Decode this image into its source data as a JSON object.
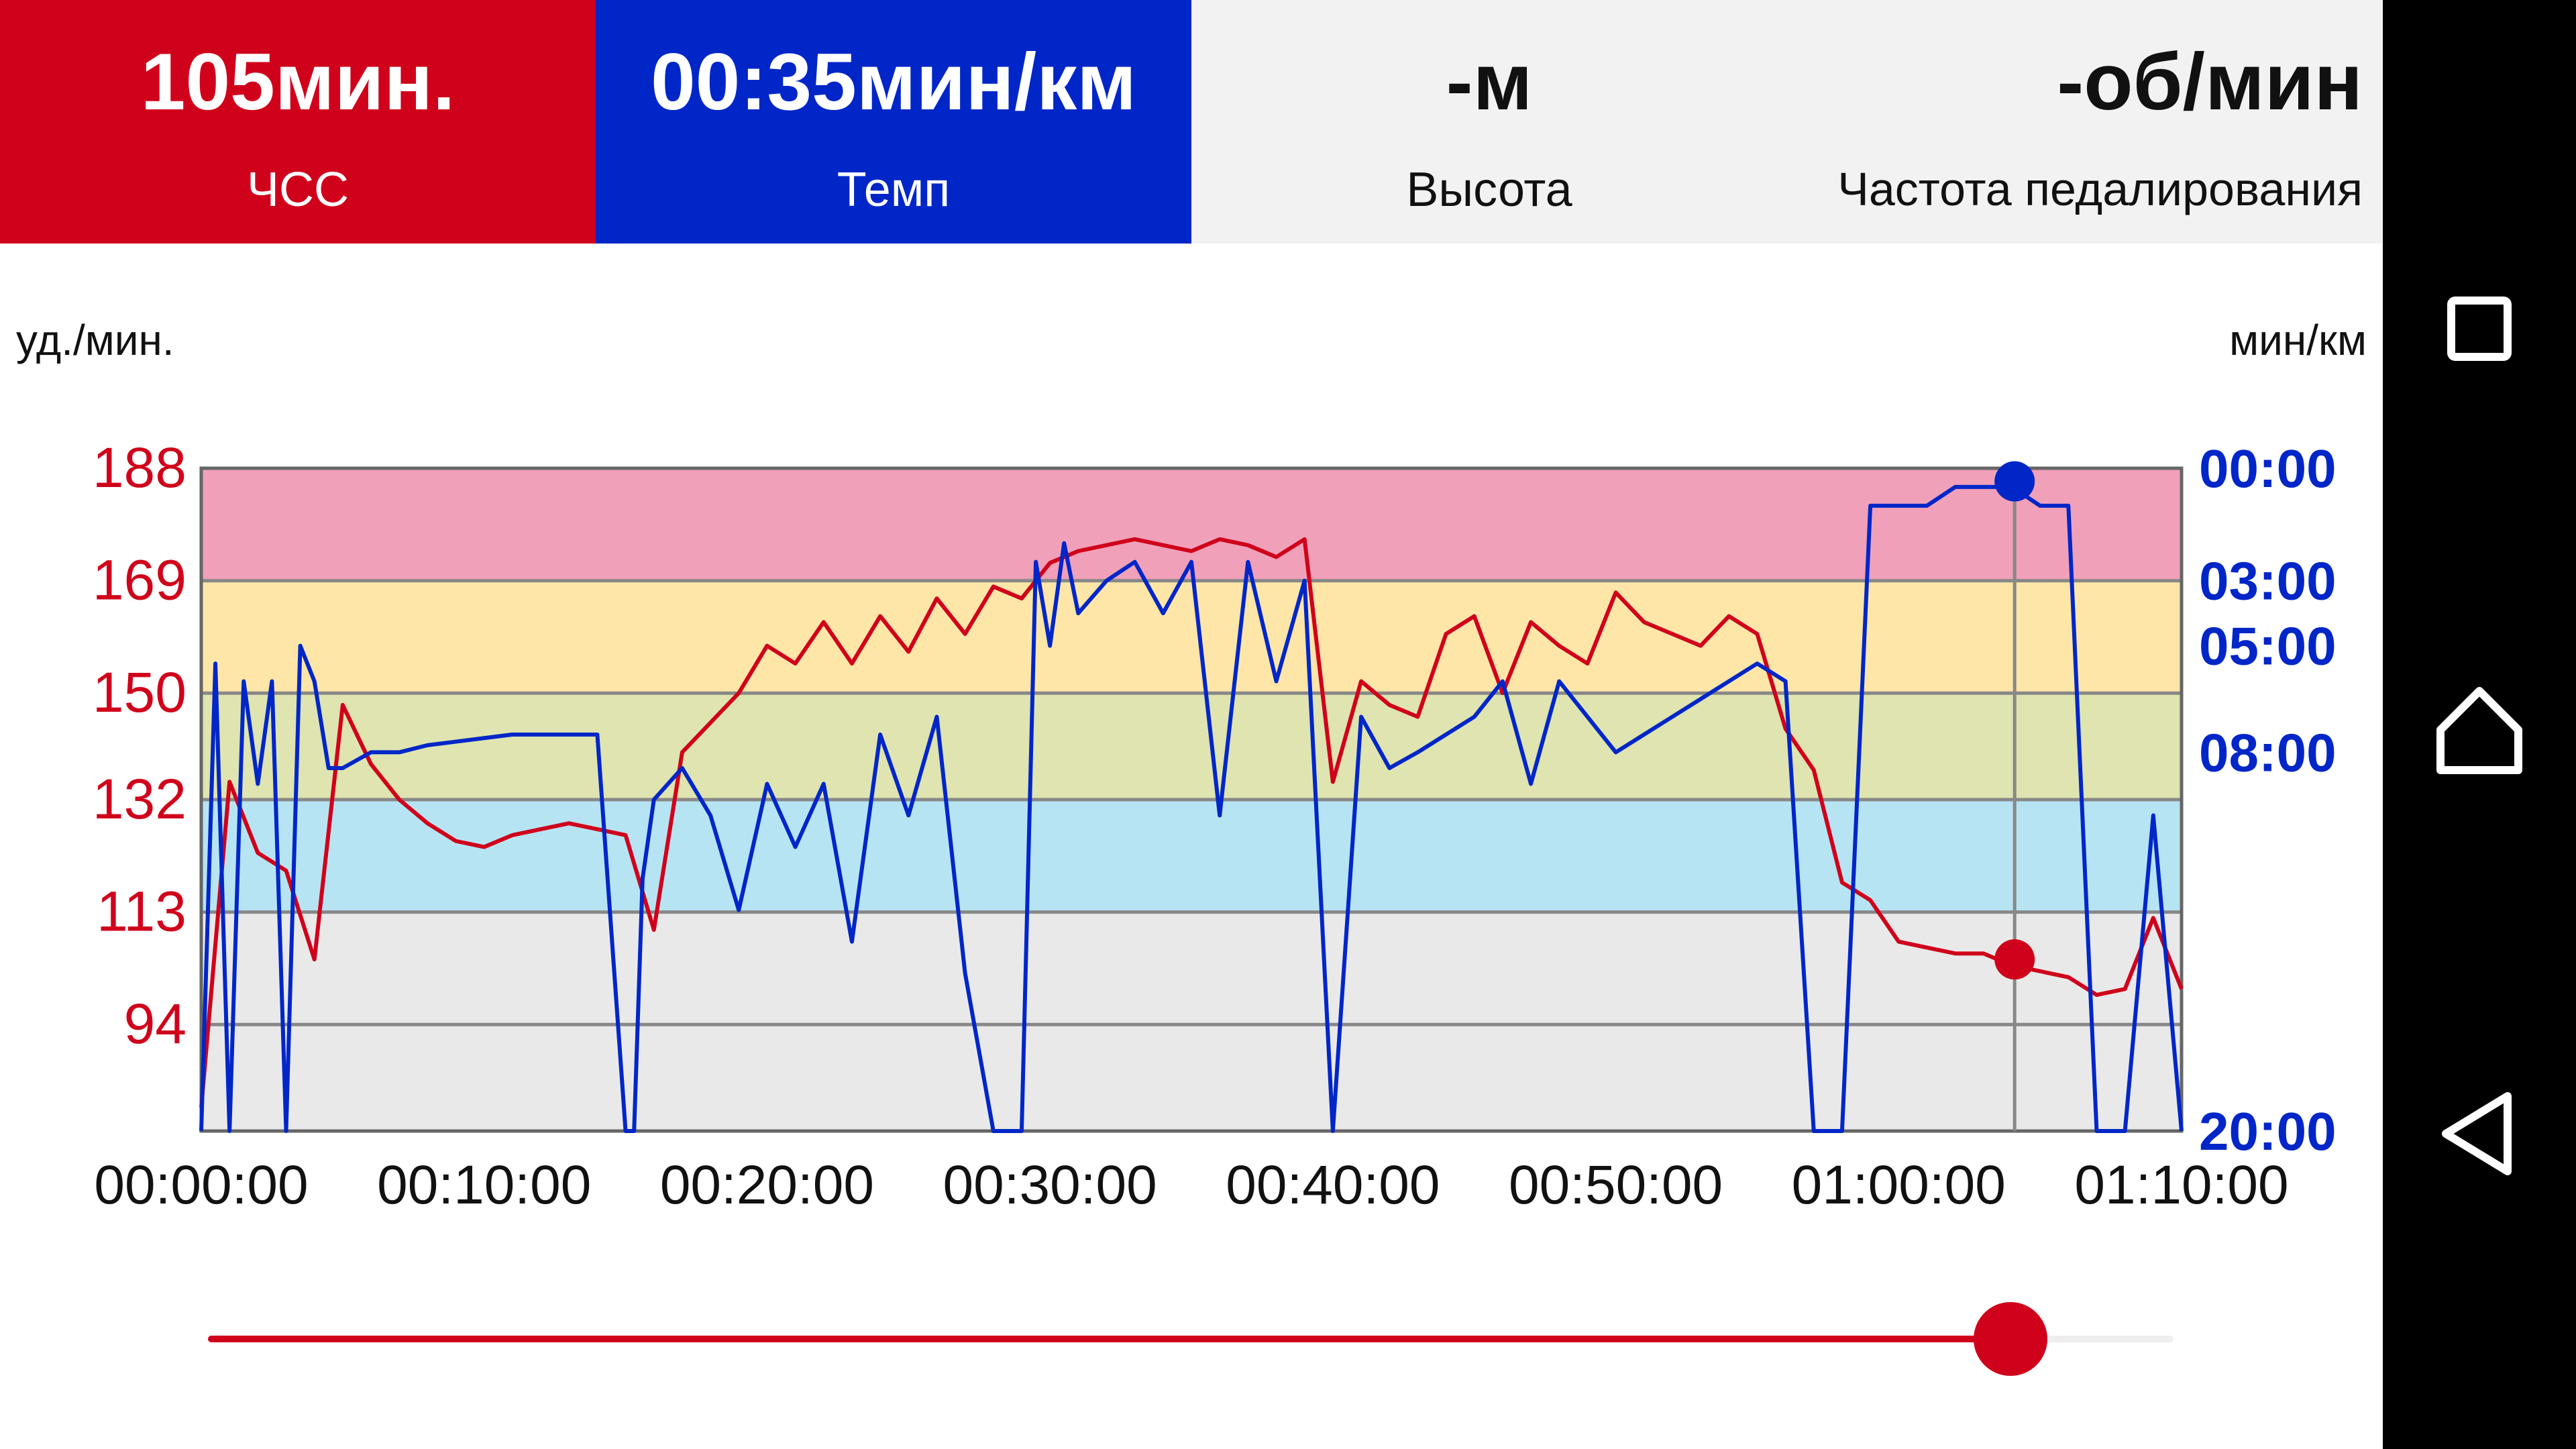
{
  "header": {
    "tiles": [
      {
        "value": "105мин.",
        "label": "ЧСС",
        "color": "#d0021b"
      },
      {
        "value": "00:35мин/км",
        "label": "Темп",
        "color": "#0026c8"
      },
      {
        "value": "-м",
        "label": "Высота",
        "color": "#f2f2f2"
      },
      {
        "value": "-об/мин",
        "label": "Частота педалирования",
        "color": "#f2f2f2"
      }
    ]
  },
  "nav": {
    "icons": [
      "square-recents-icon",
      "home-icon",
      "back-triangle-icon"
    ]
  },
  "chart": {
    "left_unit": "уд./мин.",
    "right_unit": "мин/км"
  },
  "chart_data": {
    "type": "line",
    "x_ticks": [
      "00:00:00",
      "00:10:00",
      "00:20:00",
      "00:30:00",
      "00:40:00",
      "00:50:00",
      "01:00:00",
      "01:10:00"
    ],
    "x_range_min": [
      0,
      70
    ],
    "y_left": {
      "ticks": [
        188,
        169,
        150,
        132,
        113,
        94
      ],
      "range": [
        76,
        188
      ],
      "color": "#d0021b"
    },
    "y_right": {
      "ticks": [
        "00:00",
        "03:00",
        "05:00",
        "08:00",
        "20:00"
      ],
      "color": "#0026c8"
    },
    "zones": [
      {
        "from": 169,
        "to": 188,
        "color": "#f1a0b9"
      },
      {
        "from": 150,
        "to": 169,
        "color": "#fde6a8"
      },
      {
        "from": 132,
        "to": 150,
        "color": "#dfe4b0"
      },
      {
        "from": 113,
        "to": 132,
        "color": "#b7e4f3"
      },
      {
        "from": 76,
        "to": 113,
        "color": "#e9e9e9"
      }
    ],
    "series": [
      {
        "color": "#d0021b",
        "x": [
          0,
          1,
          2,
          3,
          4,
          5,
          6,
          7,
          8,
          9,
          10,
          11,
          12,
          13,
          14,
          15,
          16,
          17,
          18,
          19,
          20,
          21,
          22,
          23,
          24,
          25,
          26,
          27,
          28,
          29,
          30,
          31,
          32,
          33,
          34,
          35,
          36,
          37,
          38,
          39,
          40,
          41,
          42,
          43,
          44,
          45,
          46,
          47,
          48,
          49,
          50,
          51,
          52,
          53,
          54,
          55,
          56,
          57,
          58,
          59,
          60,
          61,
          62,
          63,
          64,
          65,
          66,
          67,
          68,
          69,
          70
        ],
        "y": [
          80,
          135,
          123,
          120,
          105,
          148,
          138,
          132,
          128,
          125,
          124,
          126,
          127,
          128,
          127,
          126,
          110,
          140,
          145,
          150,
          158,
          155,
          162,
          155,
          163,
          157,
          166,
          160,
          168,
          166,
          172,
          174,
          175,
          176,
          175,
          174,
          176,
          175,
          173,
          176,
          135,
          152,
          148,
          146,
          160,
          163,
          150,
          162,
          158,
          155,
          167,
          162,
          160,
          158,
          163,
          160,
          144,
          137,
          118,
          115,
          108,
          107,
          106,
          106,
          104,
          103,
          102,
          99,
          100,
          112,
          100
        ]
      },
      {
        "color": "#0026c8",
        "x": [
          0,
          0.5,
          1,
          1.5,
          2,
          2.5,
          3,
          3.5,
          4,
          4.5,
          5,
          6,
          7,
          8,
          9,
          10,
          11,
          12,
          13,
          14,
          15,
          15.3,
          15.6,
          16,
          17,
          18,
          19,
          20,
          21,
          22,
          23,
          24,
          25,
          26,
          27,
          28,
          29,
          29.5,
          30,
          30.5,
          31,
          32,
          33,
          34,
          35,
          36,
          37,
          38,
          39,
          40,
          41,
          42,
          43,
          44,
          45,
          46,
          47,
          48,
          49,
          50,
          51,
          52,
          53,
          54,
          55,
          56,
          57,
          58,
          59,
          60,
          61,
          62,
          63,
          64,
          65,
          66,
          67,
          68,
          69,
          70
        ],
        "val": [
          20,
          5.5,
          20,
          6,
          9,
          6,
          20,
          5,
          6,
          8.5,
          8.5,
          8,
          8,
          7.8,
          7.7,
          7.6,
          7.5,
          7.5,
          7.5,
          7.5,
          20,
          20,
          12,
          9.5,
          8.5,
          10,
          13,
          9,
          11,
          9,
          14,
          7.5,
          10,
          7,
          15,
          20,
          20,
          2.5,
          5,
          2,
          4,
          3,
          2.5,
          4,
          2.5,
          10,
          2.5,
          6,
          3,
          20,
          7,
          8.5,
          8,
          7.5,
          7,
          6,
          9,
          6,
          7,
          8,
          7.5,
          7,
          6.5,
          6,
          5.5,
          6,
          20,
          20,
          1,
          1,
          1,
          0.5,
          0.5,
          0.5,
          1,
          1,
          20,
          20,
          10,
          20
        ]
      }
    ],
    "cursor": {
      "x_min": 64.1,
      "hr": 105,
      "pace": "00:35"
    }
  },
  "slider": {
    "position": 0.917
  }
}
